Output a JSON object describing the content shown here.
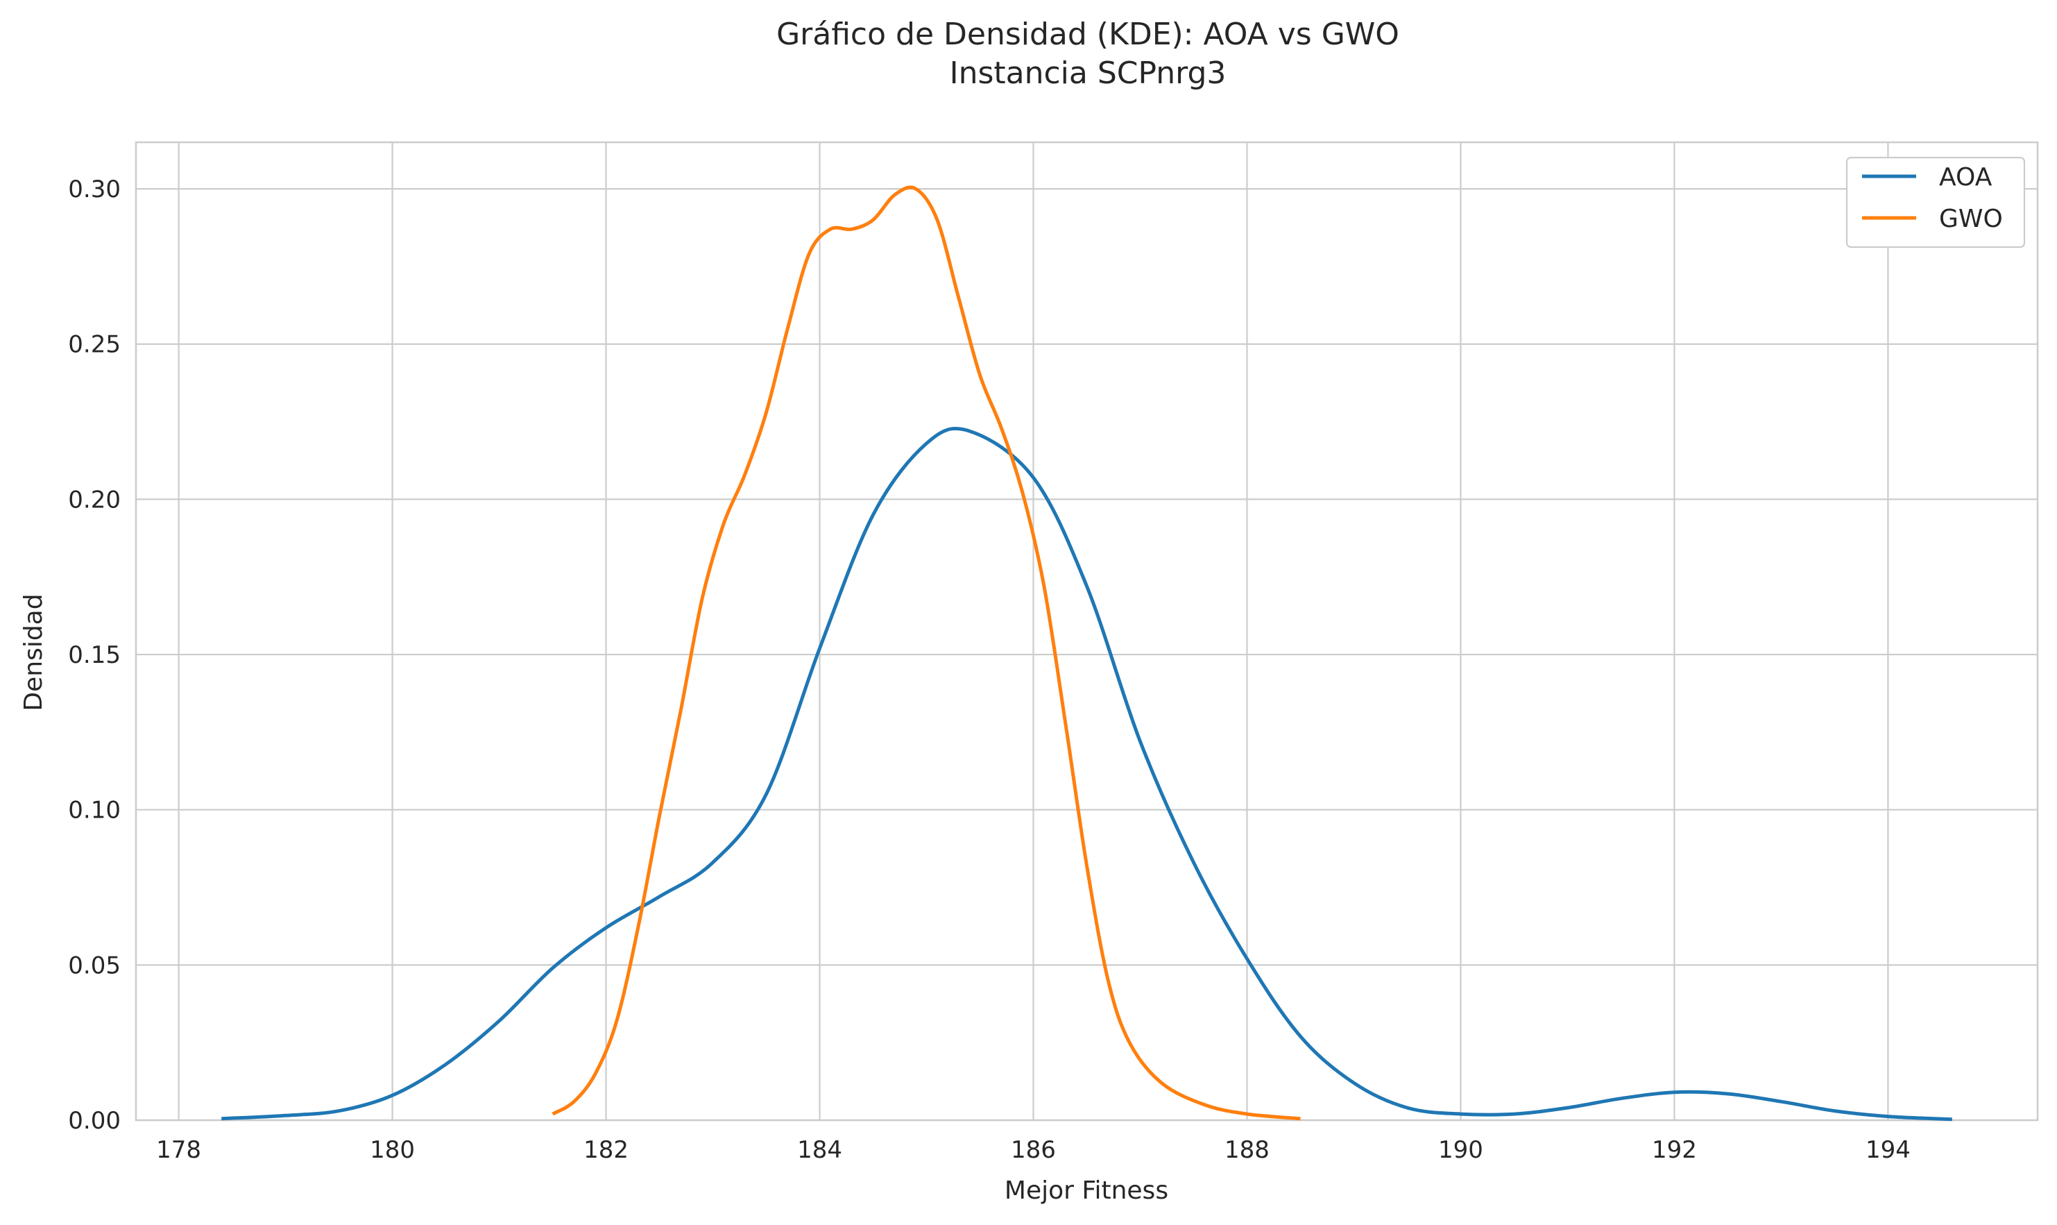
{
  "chart_data": {
    "type": "line",
    "title_lines": [
      "Gráfico de Densidad (KDE): AOA vs GWO",
      "Instancia SCPnrg3"
    ],
    "xlabel": "Mejor Fitness",
    "ylabel": "Densidad",
    "xlim": [
      177.6,
      195.4
    ],
    "ylim": [
      0.0,
      0.315
    ],
    "xticks": [
      "178",
      "180",
      "182",
      "184",
      "186",
      "188",
      "190",
      "192",
      "194"
    ],
    "yticks": [
      "0.00",
      "0.05",
      "0.10",
      "0.15",
      "0.20",
      "0.25",
      "0.30"
    ],
    "grid": true,
    "legend_position": "top-right",
    "series": [
      {
        "name": "AOA",
        "color": "#1f77b4",
        "points": [
          [
            178.4,
            0.0005
          ],
          [
            179.0,
            0.0015
          ],
          [
            179.5,
            0.003
          ],
          [
            180.0,
            0.008
          ],
          [
            180.5,
            0.018
          ],
          [
            181.0,
            0.032
          ],
          [
            181.5,
            0.049
          ],
          [
            182.0,
            0.062
          ],
          [
            182.5,
            0.072
          ],
          [
            183.0,
            0.083
          ],
          [
            183.5,
            0.105
          ],
          [
            184.0,
            0.152
          ],
          [
            184.5,
            0.195
          ],
          [
            185.0,
            0.218
          ],
          [
            185.4,
            0.222
          ],
          [
            186.0,
            0.207
          ],
          [
            186.5,
            0.172
          ],
          [
            187.0,
            0.122
          ],
          [
            187.5,
            0.083
          ],
          [
            188.0,
            0.052
          ],
          [
            188.5,
            0.027
          ],
          [
            189.0,
            0.012
          ],
          [
            189.5,
            0.004
          ],
          [
            190.0,
            0.002
          ],
          [
            190.5,
            0.002
          ],
          [
            191.0,
            0.004
          ],
          [
            191.5,
            0.007
          ],
          [
            192.0,
            0.009
          ],
          [
            192.5,
            0.0085
          ],
          [
            193.0,
            0.006
          ],
          [
            193.5,
            0.003
          ],
          [
            194.0,
            0.0012
          ],
          [
            194.6,
            0.0003
          ]
        ]
      },
      {
        "name": "GWO",
        "color": "#ff7f0e",
        "points": [
          [
            181.5,
            0.002
          ],
          [
            181.7,
            0.006
          ],
          [
            181.9,
            0.015
          ],
          [
            182.1,
            0.032
          ],
          [
            182.3,
            0.062
          ],
          [
            182.5,
            0.098
          ],
          [
            182.7,
            0.132
          ],
          [
            182.9,
            0.168
          ],
          [
            183.1,
            0.192
          ],
          [
            183.3,
            0.208
          ],
          [
            183.5,
            0.228
          ],
          [
            183.7,
            0.255
          ],
          [
            183.9,
            0.279
          ],
          [
            184.1,
            0.287
          ],
          [
            184.3,
            0.287
          ],
          [
            184.5,
            0.29
          ],
          [
            184.7,
            0.298
          ],
          [
            184.9,
            0.3
          ],
          [
            185.1,
            0.29
          ],
          [
            185.3,
            0.265
          ],
          [
            185.5,
            0.24
          ],
          [
            185.7,
            0.223
          ],
          [
            185.9,
            0.202
          ],
          [
            186.1,
            0.172
          ],
          [
            186.3,
            0.128
          ],
          [
            186.5,
            0.082
          ],
          [
            186.7,
            0.045
          ],
          [
            186.9,
            0.025
          ],
          [
            187.2,
            0.012
          ],
          [
            187.6,
            0.005
          ],
          [
            188.0,
            0.002
          ],
          [
            188.5,
            0.0005
          ]
        ]
      }
    ]
  }
}
